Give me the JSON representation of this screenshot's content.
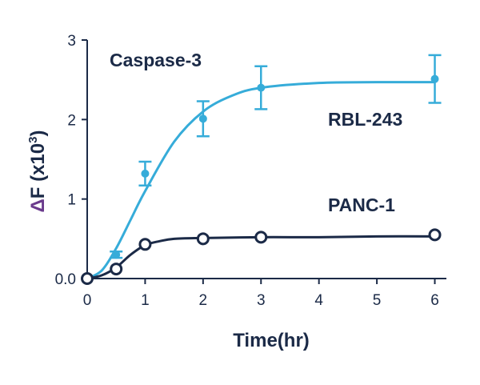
{
  "chart_data": {
    "type": "scatter",
    "xlabel": "Time(hr)",
    "ylabel": {
      "delta": "Δ",
      "main": "F (x10",
      "sup": "3",
      "close": ")"
    },
    "x_ticks": [
      0,
      1,
      2,
      3,
      4,
      5,
      6
    ],
    "y_ticks": [
      {
        "value": 0,
        "label": "0.0"
      },
      {
        "value": 1,
        "label": "1"
      },
      {
        "value": 2,
        "label": "2"
      },
      {
        "value": 3,
        "label": "3"
      }
    ],
    "xlim": [
      0,
      6.2
    ],
    "ylim": [
      0,
      3
    ],
    "grid": false,
    "annotations": [
      "Caspase-3"
    ],
    "series": [
      {
        "name": "RBL-243",
        "color": "#36acd9",
        "marker": "filled-circle",
        "x": [
          0,
          0.5,
          1,
          2,
          3,
          6
        ],
        "y": [
          0,
          0.3,
          1.32,
          2.01,
          2.4,
          2.51
        ],
        "error": [
          0,
          0.04,
          0.15,
          0.22,
          0.27,
          0.3
        ],
        "fit": {
          "x": [
            0,
            0.25,
            0.5,
            0.75,
            1,
            1.5,
            2,
            2.5,
            3,
            4,
            5,
            6
          ],
          "y": [
            0,
            0.1,
            0.38,
            0.74,
            1.1,
            1.72,
            2.1,
            2.3,
            2.4,
            2.46,
            2.47,
            2.47
          ]
        }
      },
      {
        "name": "PANC-1",
        "color": "#1b2a47",
        "marker": "open-circle",
        "x": [
          0,
          0.5,
          1,
          2,
          3,
          6
        ],
        "y": [
          0,
          0.12,
          0.43,
          0.5,
          0.52,
          0.55
        ],
        "error": [
          0,
          0,
          0,
          0,
          0,
          0
        ],
        "fit": {
          "x": [
            0,
            0.25,
            0.5,
            0.75,
            1,
            1.25,
            1.5,
            2,
            3,
            4,
            5,
            6
          ],
          "y": [
            0,
            0.04,
            0.14,
            0.3,
            0.42,
            0.47,
            0.5,
            0.51,
            0.52,
            0.52,
            0.53,
            0.53
          ]
        }
      }
    ]
  }
}
